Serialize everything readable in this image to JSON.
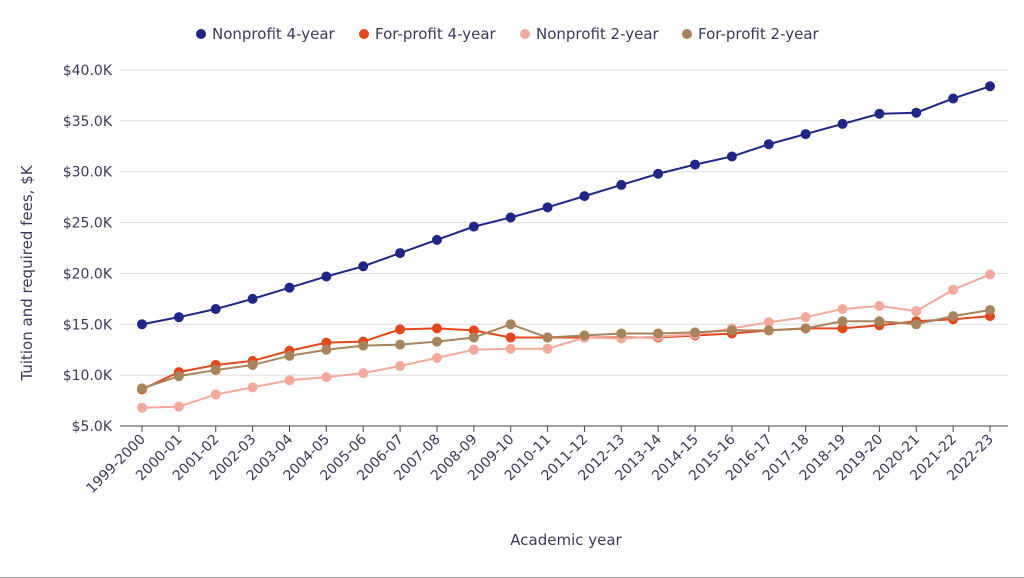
{
  "chart_data": {
    "type": "line",
    "title": "",
    "xlabel": "Academic year",
    "ylabel": "Tuition and required fees, $K",
    "ylim": [
      5,
      40
    ],
    "yticks": [
      "$5.0K",
      "$10.0K",
      "$15.0K",
      "$20.0K",
      "$25.0K",
      "$30.0K",
      "$35.0K",
      "$40.0K"
    ],
    "ytick_values": [
      5,
      10,
      15,
      20,
      25,
      30,
      35,
      40
    ],
    "grid": true,
    "legend_position": "top-center",
    "categories": [
      "1999-2000",
      "2000-01",
      "2001-02",
      "2002-03",
      "2003-04",
      "2004-05",
      "2005-06",
      "2006-07",
      "2007-08",
      "2008-09",
      "2009-10",
      "2010-11",
      "2011-12",
      "2012-13",
      "2013-14",
      "2014-15",
      "2015-16",
      "2016-17",
      "2017-18",
      "2018-19",
      "2019-20",
      "2020-21",
      "2021-22",
      "2022-23"
    ],
    "series": [
      {
        "name": "Nonprofit 4-year",
        "color": "#1f2685",
        "values": [
          15.0,
          15.7,
          16.5,
          17.5,
          18.6,
          19.7,
          20.7,
          22.0,
          23.3,
          24.6,
          25.5,
          26.5,
          27.6,
          28.7,
          29.8,
          30.7,
          31.5,
          32.7,
          33.7,
          34.7,
          35.7,
          35.8,
          37.2,
          38.4
        ]
      },
      {
        "name": "For-profit 4-year",
        "color": "#e2481b",
        "values": [
          8.6,
          10.3,
          11.0,
          11.4,
          12.4,
          13.2,
          13.3,
          14.5,
          14.6,
          14.4,
          13.7,
          13.7,
          13.7,
          13.7,
          13.7,
          13.9,
          14.1,
          14.4,
          14.6,
          14.6,
          14.9,
          15.3,
          15.5,
          15.8
        ]
      },
      {
        "name": "Nonprofit 2-year",
        "color": "#f5a99b",
        "values": [
          6.8,
          6.9,
          8.1,
          8.8,
          9.5,
          9.8,
          10.2,
          10.9,
          11.7,
          12.5,
          12.6,
          12.6,
          13.7,
          13.6,
          13.8,
          14.0,
          14.6,
          15.2,
          15.7,
          16.5,
          16.8,
          16.3,
          18.4,
          19.9
        ]
      },
      {
        "name": "For-profit 2-year",
        "color": "#a8845c",
        "values": [
          8.7,
          9.9,
          10.5,
          11.0,
          11.9,
          12.5,
          12.9,
          13.0,
          13.3,
          13.7,
          15.0,
          13.7,
          13.9,
          14.1,
          14.1,
          14.2,
          14.4,
          14.4,
          14.6,
          15.3,
          15.3,
          15.0,
          15.8,
          16.4
        ]
      }
    ]
  }
}
